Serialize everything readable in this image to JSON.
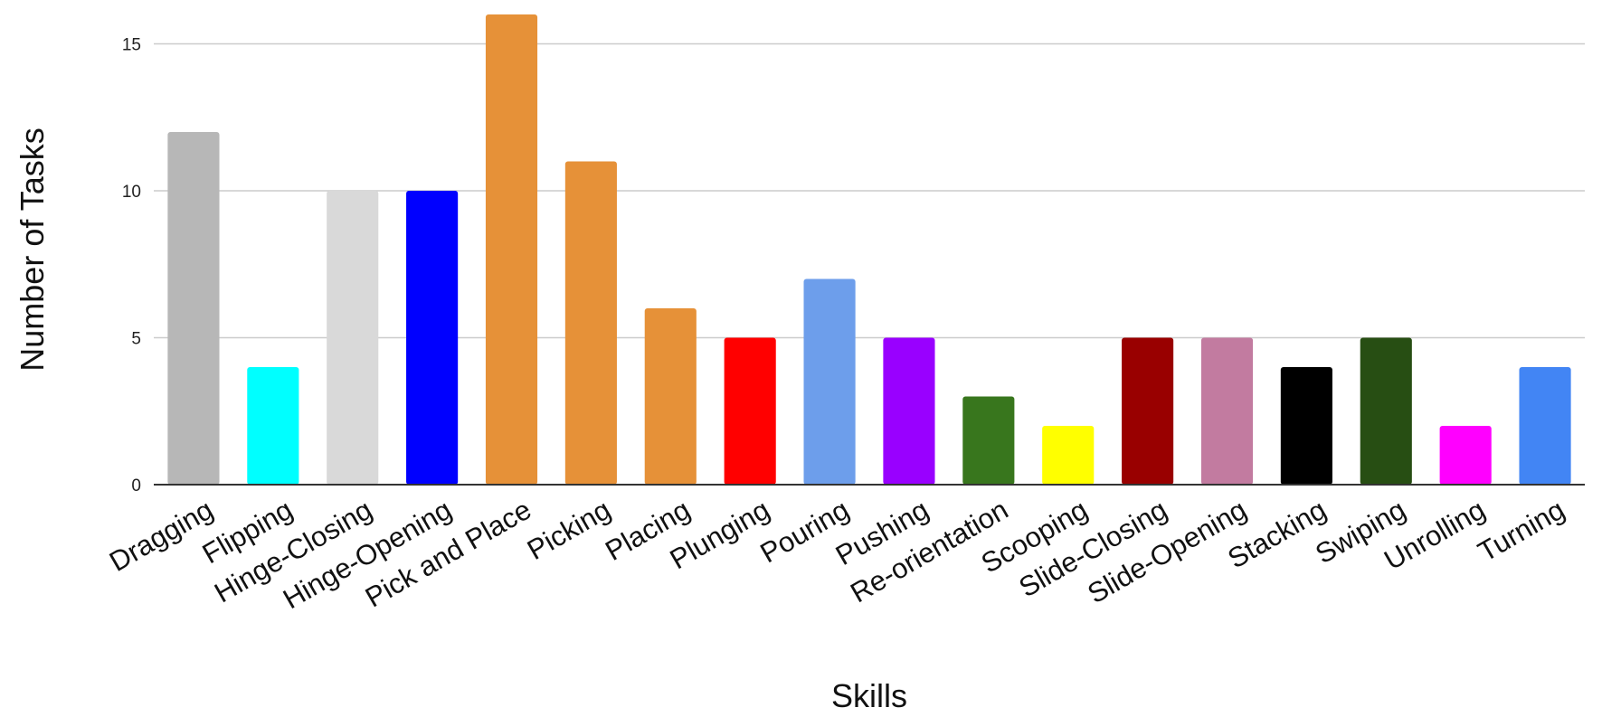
{
  "chart_data": {
    "type": "bar",
    "title": "",
    "xlabel": "Skills",
    "ylabel": "Number of Tasks",
    "ylim": [
      0,
      16
    ],
    "yticks": [
      0,
      5,
      10,
      15
    ],
    "grid": true,
    "legend": "none",
    "categories": [
      "Dragging",
      "Flipping",
      "Hinge-Closing",
      "Hinge-Opening",
      "Pick and Place",
      "Picking",
      "Placing",
      "Plunging",
      "Pouring",
      "Pushing",
      "Re-orientation",
      "Scooping",
      "Slide-Closing",
      "Slide-Opening",
      "Stacking",
      "Swiping",
      "Unrolling",
      "Turning"
    ],
    "values": [
      12,
      4,
      10,
      10,
      16,
      11,
      6,
      5,
      7,
      5,
      3,
      2,
      5,
      5,
      4,
      5,
      2,
      4
    ],
    "colors": [
      "#b7b7b7",
      "#00ffff",
      "#d9d9d9",
      "#0000ff",
      "#e69138",
      "#e69138",
      "#e69138",
      "#ff0000",
      "#6d9eeb",
      "#9900ff",
      "#38761d",
      "#ffff00",
      "#990000",
      "#c27ba0",
      "#000000",
      "#274e13",
      "#ff00ff",
      "#4285f4"
    ]
  }
}
